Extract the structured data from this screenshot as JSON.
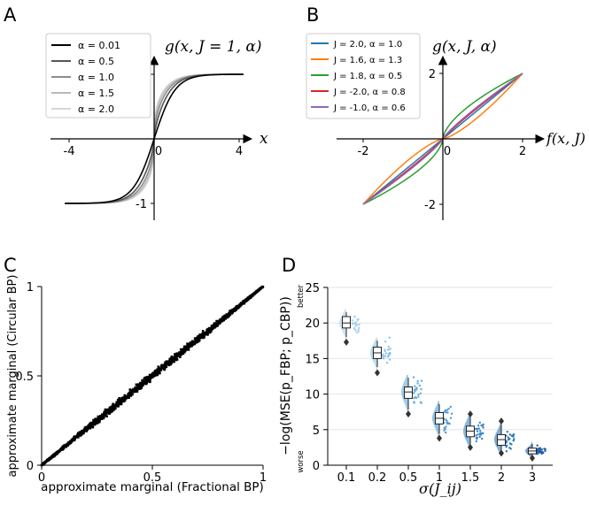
{
  "chart_data": [
    {
      "panel": "A",
      "type": "line",
      "title": "g(x, J = 1, α)",
      "xlabel": "x",
      "xlim": [
        -4.7,
        5.2
      ],
      "ylim": [
        -1.25,
        1.35
      ],
      "xticks": [
        -4,
        0,
        4
      ],
      "xtick_labels": [
        "-4",
        "0",
        "4"
      ],
      "yticks": [
        1,
        -1
      ],
      "ytick_labels": [
        "1",
        "-1"
      ],
      "series": [
        {
          "name": "α = 0.01",
          "alpha": 0.01,
          "color": "#000000"
        },
        {
          "name": "α = 0.5",
          "alpha": 0.5,
          "color": "#555555"
        },
        {
          "name": "α = 1.0",
          "alpha": 1.0,
          "color": "#8c8c8c"
        },
        {
          "name": "α = 1.5",
          "alpha": 1.5,
          "color": "#b9b9b9"
        },
        {
          "name": "α = 2.0",
          "alpha": 2.0,
          "color": "#d6d6d6"
        }
      ]
    },
    {
      "panel": "B",
      "type": "line",
      "title": "g(x, J, α)",
      "xlabel": "f(x, J)",
      "xlim": [
        -2.6,
        2.8
      ],
      "ylim": [
        -2.3,
        2.55
      ],
      "xticks": [
        -2,
        0,
        2
      ],
      "xtick_labels": [
        "-2",
        "0",
        "2"
      ],
      "yticks": [
        2,
        -2
      ],
      "ytick_labels": [
        "2",
        "-2"
      ],
      "series": [
        {
          "name": "J = 2.0, α = 1.0",
          "J": 2.0,
          "alpha": 1.0,
          "color": "#1f77b4"
        },
        {
          "name": "J = 1.6, α = 1.3",
          "J": 1.6,
          "alpha": 1.3,
          "color": "#ff7f0e"
        },
        {
          "name": "J = 1.8, α = 0.5",
          "J": 1.8,
          "alpha": 0.5,
          "color": "#2ca02c"
        },
        {
          "name": "J = -2.0, α = 0.8",
          "J": -2.0,
          "alpha": 0.8,
          "color": "#d62728"
        },
        {
          "name": "J = -1.0, α = 0.6",
          "J": -1.0,
          "alpha": 0.6,
          "color": "#9467bd"
        }
      ]
    },
    {
      "panel": "C",
      "type": "scatter",
      "xlabel": "approximate marginal (Fractional BP)",
      "ylabel": "approximate marginal (Circular BP)",
      "xlim": [
        0,
        1
      ],
      "ylim": [
        0,
        1
      ],
      "ticks": [
        0,
        0.5,
        1
      ],
      "tick_labels": [
        "0",
        "0.5",
        "1"
      ],
      "points_description": "approximately 1500 points clustered tightly along the diagonal y = x, spread largest near 0.5",
      "n_points": 1500,
      "max_spread": 0.035
    },
    {
      "panel": "D",
      "type": "box",
      "xlabel": "σ(J_ij)",
      "ylabel": "−log(MSE(p_FBP; p_CBP))",
      "ylabel_top": "better",
      "ylabel_bottom": "worse",
      "ylim": [
        0,
        25
      ],
      "yticks": [
        0,
        5,
        10,
        15,
        20,
        25
      ],
      "categories": [
        "0.1",
        "0.2",
        "0.5",
        "1",
        "1.5",
        "2",
        "3"
      ],
      "median": [
        20.0,
        15.8,
        10.3,
        6.6,
        4.8,
        3.6,
        2.0
      ],
      "q1": [
        19.3,
        15.0,
        9.4,
        5.8,
        4.0,
        2.8,
        1.6
      ],
      "q3": [
        20.9,
        16.6,
        11.0,
        7.4,
        5.5,
        4.3,
        2.4
      ],
      "whisker_low": [
        18.0,
        13.8,
        7.8,
        4.4,
        2.8,
        1.9,
        1.3
      ],
      "whisker_high": [
        21.5,
        17.5,
        12.3,
        8.6,
        7.0,
        5.7,
        3.0
      ],
      "outliers": [
        [
          17.3
        ],
        [
          13.0
        ],
        [
          7.2
        ],
        [
          3.8
        ],
        [
          7.2,
          2.5
        ],
        [
          6.2,
          1.7
        ],
        [
          1.0
        ]
      ],
      "point_colors": [
        "#aad2ee",
        "#8ec3e8",
        "#66abdd",
        "#4f9ad3",
        "#3c88c8",
        "#2d77bd",
        "#1f5fa8"
      ]
    }
  ],
  "panel_labels": [
    "A",
    "B",
    "C",
    "D"
  ]
}
